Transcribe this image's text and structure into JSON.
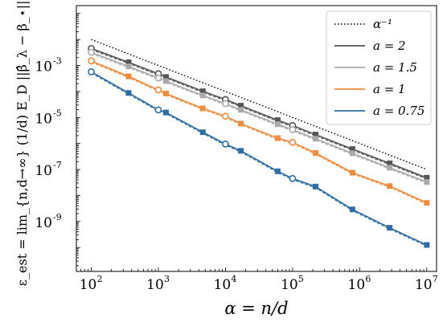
{
  "chart_data": {
    "type": "line",
    "xlabel": "α = n/d",
    "ylabel": "ε_est = lim_{n,d→∞} (1/d) E_D ||β̂_λ − β_⋆||²₂",
    "xscale": "log",
    "yscale": "log",
    "xlim": [
      60,
      14000000
    ],
    "ylim": [
      1.2e-11,
      0.2
    ],
    "xticks": [
      {
        "value": 100,
        "base": "10",
        "exp": "2"
      },
      {
        "value": 1000,
        "base": "10",
        "exp": "3"
      },
      {
        "value": 10000,
        "base": "10",
        "exp": "4"
      },
      {
        "value": 100000,
        "base": "10",
        "exp": "5"
      },
      {
        "value": 1000000,
        "base": "10",
        "exp": "6"
      },
      {
        "value": 10000000,
        "base": "10",
        "exp": "7"
      }
    ],
    "yticks": [
      {
        "value": 0.001,
        "base": "10",
        "exp": "-3"
      },
      {
        "value": 1e-05,
        "base": "10",
        "exp": "-5"
      },
      {
        "value": 1e-07,
        "base": "10",
        "exp": "-7"
      },
      {
        "value": 1e-09,
        "base": "10",
        "exp": "-9"
      }
    ],
    "grid": false,
    "legend_position": "top-right",
    "reference": {
      "name": "α⁻¹",
      "color": "#000000",
      "style": "dotted",
      "x": [
        100,
        10000000
      ],
      "y": [
        0.01,
        1e-07
      ]
    },
    "series": [
      {
        "name": "a = 2",
        "color": "#555555",
        "circles_x": [
          100,
          1000,
          10000,
          100000
        ],
        "circles_y": [
          0.0045,
          0.00048,
          4.9e-05,
          4.9e-06
        ],
        "squares_x": [
          360,
          1300,
          4600,
          17000,
          60000,
          220000,
          780000,
          2800000,
          10000000
        ],
        "squares_y": [
          0.00132,
          0.00036,
          0.000102,
          2.84e-05,
          7.9e-06,
          2.2e-06,
          6.1e-07,
          1.72e-07,
          4.8e-08
        ]
      },
      {
        "name": "a = 1.5",
        "color": "#aaaaaa",
        "circles_x": [
          100,
          1000,
          10000,
          100000
        ],
        "circles_y": [
          0.0032,
          0.00033,
          3.4e-05,
          3.4e-06
        ],
        "squares_x": [
          360,
          1300,
          4600,
          17000,
          60000,
          220000,
          780000,
          2800000,
          10000000
        ],
        "squares_y": [
          0.00092,
          0.00025,
          7.05e-05,
          1.97e-05,
          5.5e-06,
          1.52e-06,
          4.2e-07,
          1.17e-07,
          3.3e-08
        ]
      },
      {
        "name": "a = 1",
        "color": "#f08c3c",
        "circles_x": [
          100,
          1000,
          10000,
          100000
        ],
        "circles_y": [
          0.0015,
          0.000115,
          1.12e-05,
          1.1e-06
        ],
        "squares_x": [
          360,
          1300,
          4600,
          17000,
          60000,
          220000,
          780000,
          2800000,
          10000000
        ],
        "squares_y": [
          0.00038,
          8.3e-05,
          2.23e-05,
          5.8e-06,
          1.6e-06,
          4.3e-07,
          7.5e-08,
          2.3e-08,
          5.2e-09
        ]
      },
      {
        "name": "a = 0.75",
        "color": "#2e6ea6",
        "circles_x": [
          100,
          1000,
          10000,
          100000
        ],
        "circles_y": [
          0.00057,
          1.95e-05,
          9.5e-07,
          4.5e-08
        ],
        "squares_x": [
          360,
          1300,
          4600,
          17000,
          60000,
          220000,
          780000,
          2800000,
          10000000
        ],
        "squares_y": [
          8.75e-05,
          1.55e-05,
          2.7e-06,
          5.2e-07,
          8.5e-08,
          2.2e-08,
          2.9e-09,
          5.7e-10,
          1.25e-10
        ]
      }
    ]
  }
}
